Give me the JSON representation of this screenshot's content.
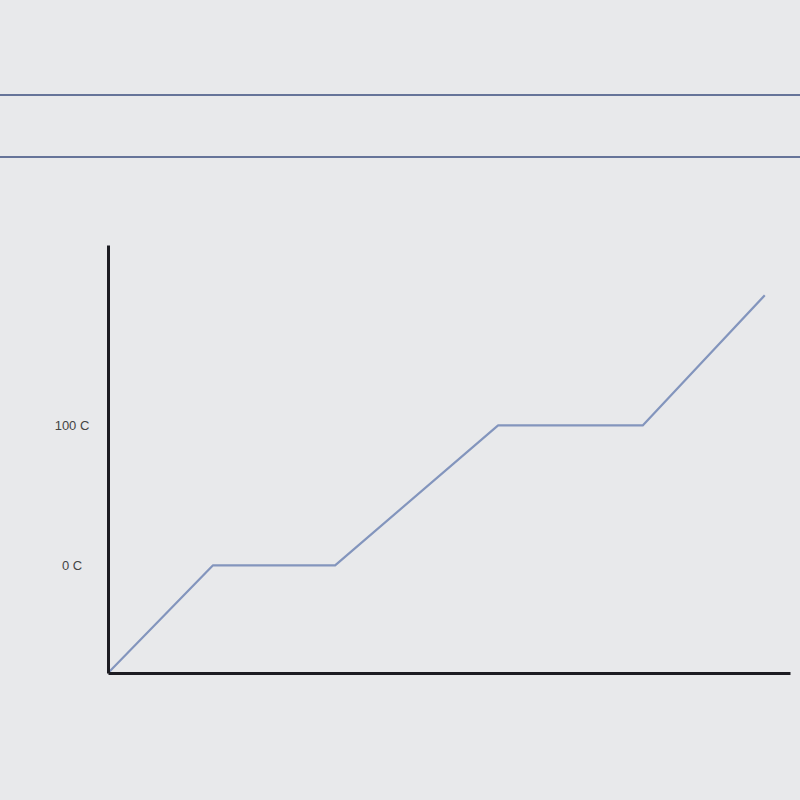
{
  "chart_data": {
    "type": "line",
    "x": [
      0,
      15.4,
      33.3,
      57.2,
      78.4,
      96.3
    ],
    "values": [
      -77,
      0,
      0,
      100,
      100,
      193
    ],
    "color": "#8395bd",
    "xlim": [
      0,
      100
    ],
    "ylim": [
      -77,
      229
    ],
    "yticks": [
      {
        "value": 0,
        "label": "0 C"
      },
      {
        "value": 100,
        "label": "100 C"
      }
    ],
    "tick_labels": "y"
  }
}
